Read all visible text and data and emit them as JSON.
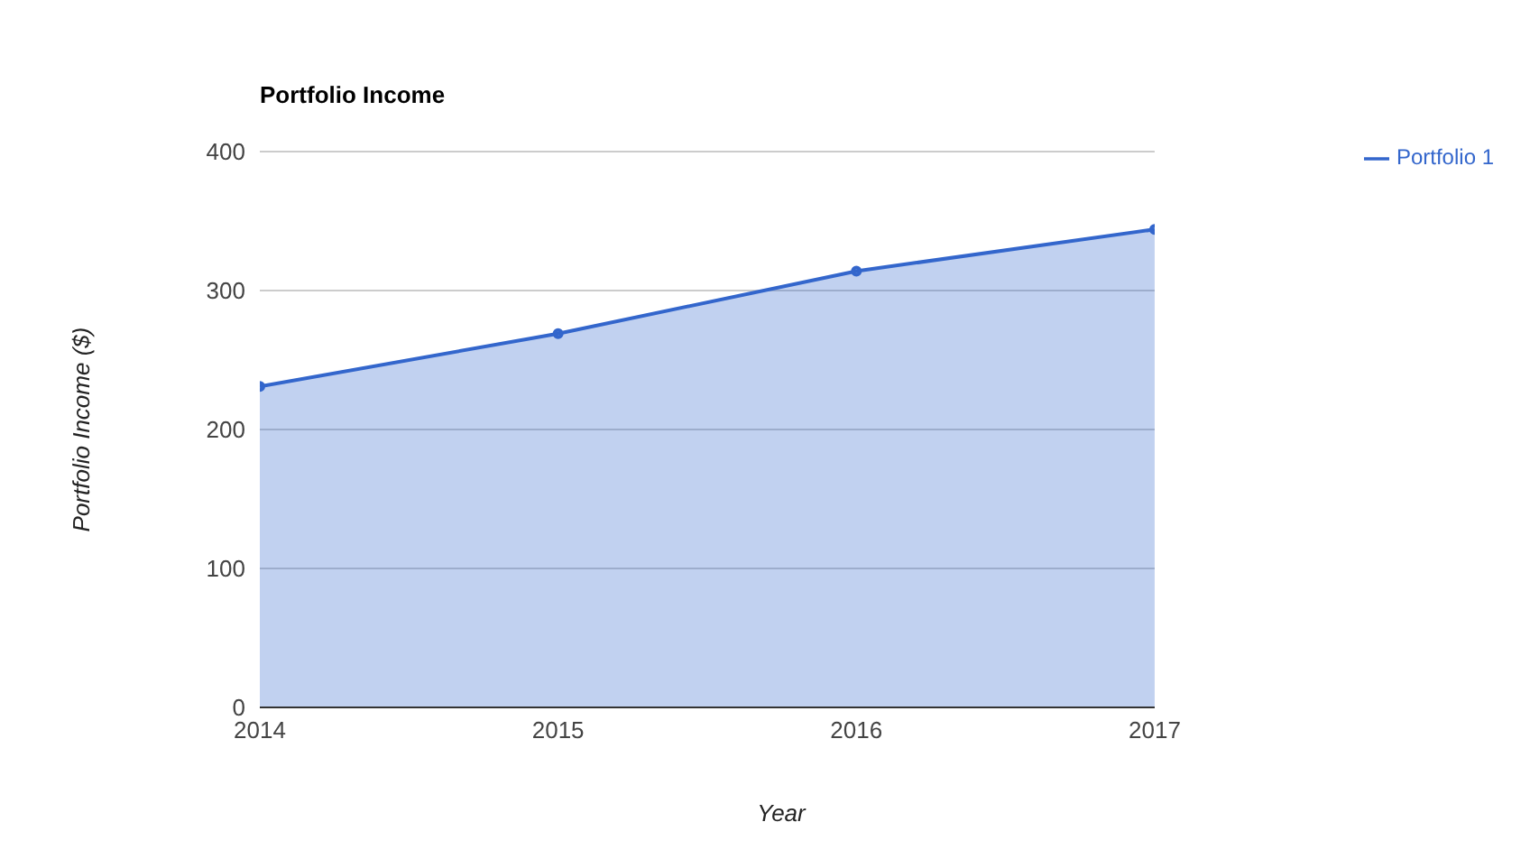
{
  "chart_data": {
    "type": "area",
    "title": "Portfolio Income",
    "xlabel": "Year",
    "ylabel": "Portfolio Income ($)",
    "x": [
      2014,
      2015,
      2016,
      2017
    ],
    "series": [
      {
        "name": "Portfolio 1",
        "color": "#3366cc",
        "values": [
          231,
          269,
          314,
          344
        ]
      }
    ],
    "xlim": [
      2014,
      2017
    ],
    "xticks": [
      2014,
      2015,
      2016,
      2017
    ],
    "ylim": [
      0,
      400
    ],
    "yticks": [
      0,
      100,
      200,
      300,
      400
    ],
    "grid": "y",
    "legend": "top right",
    "marker": "circle",
    "line_style": "solid"
  }
}
